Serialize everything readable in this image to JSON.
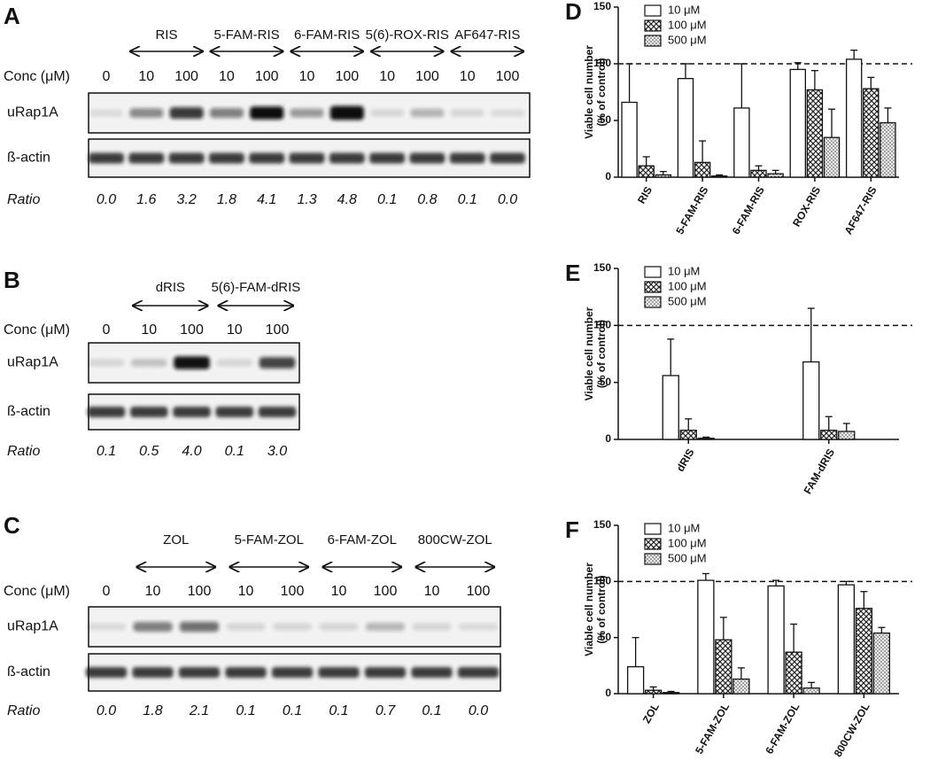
{
  "blots": [
    {
      "label": "A",
      "conc_label": "Conc (μM)",
      "rows": [
        "uRap1A",
        "ß-actin"
      ],
      "ratio_label": "Ratio",
      "control": {
        "conc": "0",
        "ratio": "0.0"
      },
      "groups": [
        {
          "name": "RIS",
          "conc": [
            "10",
            "100"
          ],
          "ratio": [
            "1.6",
            "3.2"
          ]
        },
        {
          "name": "5-FAM-RIS",
          "conc": [
            "10",
            "100"
          ],
          "ratio": [
            "1.8",
            "4.1"
          ]
        },
        {
          "name": "6-FAM-RIS",
          "conc": [
            "10",
            "100"
          ],
          "ratio": [
            "1.3",
            "4.8"
          ]
        },
        {
          "name": "5(6)-ROX-RIS",
          "conc": [
            "10",
            "100"
          ],
          "ratio": [
            "0.1",
            "0.8"
          ]
        },
        {
          "name": "AF647-RIS",
          "conc": [
            "10",
            "100"
          ],
          "ratio": [
            "0.1",
            "0.0"
          ]
        }
      ]
    },
    {
      "label": "B",
      "conc_label": "Conc (μM)",
      "rows": [
        "uRap1A",
        "ß-actin"
      ],
      "ratio_label": "Ratio",
      "control": {
        "conc": "0",
        "ratio": "0.1"
      },
      "groups": [
        {
          "name": "dRIS",
          "conc": [
            "10",
            "100"
          ],
          "ratio": [
            "0.5",
            "4.0"
          ]
        },
        {
          "name": "5(6)-FAM-dRIS",
          "conc": [
            "10",
            "100"
          ],
          "ratio": [
            "0.1",
            "3.0"
          ]
        }
      ]
    },
    {
      "label": "C",
      "conc_label": "Conc (μM)",
      "rows": [
        "uRap1A",
        "ß-actin"
      ],
      "ratio_label": "Ratio",
      "control": {
        "conc": "0",
        "ratio": "0.0"
      },
      "groups": [
        {
          "name": "ZOL",
          "conc": [
            "10",
            "100"
          ],
          "ratio": [
            "1.8",
            "2.1"
          ]
        },
        {
          "name": "5-FAM-ZOL",
          "conc": [
            "10",
            "100"
          ],
          "ratio": [
            "0.1",
            "0.1"
          ]
        },
        {
          "name": "6-FAM-ZOL",
          "conc": [
            "10",
            "100"
          ],
          "ratio": [
            "0.1",
            "0.7"
          ]
        },
        {
          "name": "800CW-ZOL",
          "conc": [
            "10",
            "100"
          ],
          "ratio": [
            "0.1",
            "0.0"
          ]
        }
      ]
    }
  ],
  "chart_data": [
    {
      "type": "bar",
      "label": "D",
      "ylabel": [
        "Viable cell number",
        "(% of control)"
      ],
      "categories": [
        "RIS",
        "5-FAM-RIS",
        "6-FAM-RIS",
        "ROX-RIS",
        "AF647-RIS"
      ],
      "ylim": [
        0,
        150
      ],
      "yticks": [
        0,
        50,
        100,
        150
      ],
      "hline": 100,
      "legend": "top-left",
      "series": [
        {
          "name": "10 μM",
          "color": "#ffffff",
          "pattern": "none",
          "values": [
            66,
            87,
            61,
            95,
            104
          ],
          "errors": [
            34,
            13,
            39,
            6,
            8
          ]
        },
        {
          "name": "100 μM",
          "color": "#ffffff",
          "pattern": "crosshatch",
          "values": [
            10,
            13,
            6,
            77,
            78
          ],
          "errors": [
            8,
            19,
            4,
            17,
            10
          ]
        },
        {
          "name": "500 μM",
          "color": "#ffffff",
          "pattern": "dots",
          "values": [
            2,
            1,
            3,
            35,
            48
          ],
          "errors": [
            3,
            1,
            3,
            25,
            13
          ]
        }
      ]
    },
    {
      "type": "bar",
      "label": "E",
      "ylabel": [
        "Viable cell number",
        "(% of control)"
      ],
      "categories": [
        "dRIS",
        "FAM-dRIS"
      ],
      "ylim": [
        0,
        150
      ],
      "yticks": [
        0,
        50,
        100,
        150
      ],
      "hline": 100,
      "legend": "top-left",
      "series": [
        {
          "name": "10 μM",
          "color": "#ffffff",
          "pattern": "none",
          "values": [
            56,
            68
          ],
          "errors": [
            32,
            47
          ]
        },
        {
          "name": "100 μM",
          "color": "#ffffff",
          "pattern": "crosshatch",
          "values": [
            8,
            8
          ],
          "errors": [
            10,
            12
          ]
        },
        {
          "name": "500 μM",
          "color": "#ffffff",
          "pattern": "dots",
          "values": [
            1,
            7
          ],
          "errors": [
            1,
            7
          ]
        }
      ]
    },
    {
      "type": "bar",
      "label": "F",
      "ylabel": [
        "Viable cell number",
        "(% of control)"
      ],
      "categories": [
        "ZOL",
        "5-FAM-ZOL",
        "6-FAM-ZOL",
        "800CW-ZOL"
      ],
      "ylim": [
        0,
        150
      ],
      "yticks": [
        0,
        50,
        100,
        150
      ],
      "hline": 100,
      "legend": "top-left",
      "series": [
        {
          "name": "10 μM",
          "color": "#ffffff",
          "pattern": "none",
          "values": [
            24,
            101,
            96,
            97
          ],
          "errors": [
            26,
            6,
            5,
            3
          ]
        },
        {
          "name": "100 μM",
          "color": "#ffffff",
          "pattern": "crosshatch",
          "values": [
            3,
            48,
            37,
            76
          ],
          "errors": [
            3,
            20,
            25,
            15
          ]
        },
        {
          "name": "500 μM",
          "color": "#ffffff",
          "pattern": "dots",
          "values": [
            1,
            13,
            5,
            54
          ],
          "errors": [
            1,
            10,
            5,
            5
          ]
        }
      ]
    }
  ]
}
